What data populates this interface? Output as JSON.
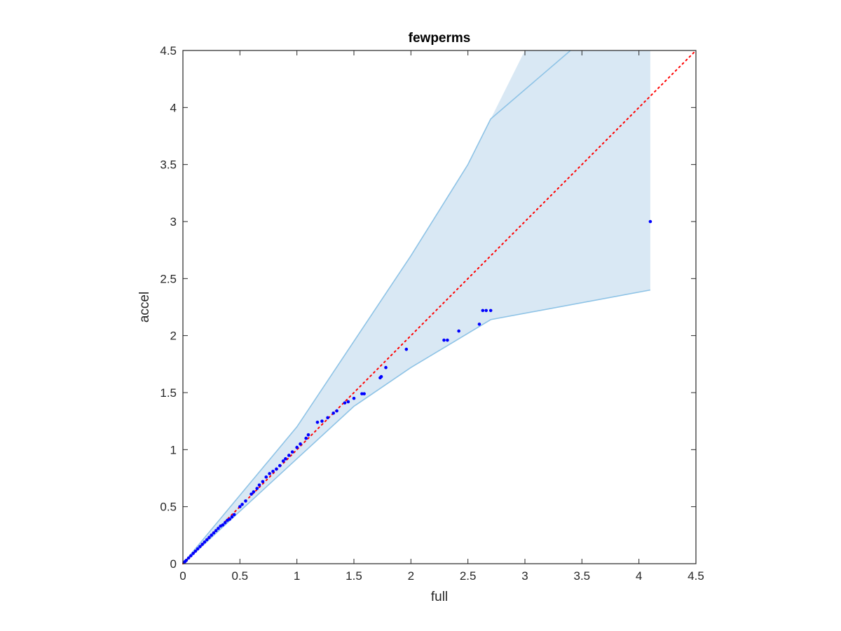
{
  "chart_data": {
    "type": "scatter",
    "title": "fewperms",
    "xlabel": "full",
    "ylabel": "accel",
    "xlim": [
      0,
      4.5
    ],
    "ylim": [
      0,
      4.5
    ],
    "xticks": [
      "0",
      "0.5",
      "1",
      "1.5",
      "2",
      "2.5",
      "3",
      "3.5",
      "4",
      "4.5"
    ],
    "yticks": [
      "0",
      "0.5",
      "1",
      "1.5",
      "2",
      "2.5",
      "3",
      "3.5",
      "4",
      "4.5"
    ],
    "grid": false,
    "box": true,
    "reference_line": {
      "style": "dotted",
      "color": "#ff0000",
      "x": [
        0,
        4.5
      ],
      "y": [
        0,
        4.5
      ]
    },
    "confidence_band": {
      "fill": "#d9e8f4",
      "edge": "#8ec3e6",
      "upper": {
        "x": [
          0,
          0.5,
          1.0,
          1.5,
          2.0,
          2.5,
          2.7,
          3.0,
          3.4
        ],
        "y": [
          0,
          0.6,
          1.2,
          1.95,
          2.7,
          3.5,
          3.9,
          4.5,
          4.5
        ]
      },
      "lower": {
        "x": [
          0,
          0.5,
          1.0,
          1.5,
          2.0,
          2.5,
          2.7,
          4.1
        ],
        "y": [
          0,
          0.46,
          0.92,
          1.38,
          1.72,
          2.02,
          2.14,
          2.4
        ]
      },
      "x_end": 4.1,
      "upper_x_at_top": 3.4
    },
    "series": [
      {
        "color": "#0000ff",
        "x": [
          0.01,
          0.02,
          0.03,
          0.05,
          0.07,
          0.09,
          0.11,
          0.13,
          0.15,
          0.17,
          0.19,
          0.21,
          0.23,
          0.25,
          0.27,
          0.29,
          0.31,
          0.33,
          0.35,
          0.37,
          0.39,
          0.41,
          0.43,
          0.45,
          0.5,
          0.52,
          0.55,
          0.6,
          0.62,
          0.65,
          0.67,
          0.7,
          0.73,
          0.76,
          0.79,
          0.82,
          0.85,
          0.88,
          0.9,
          0.93,
          0.96,
          1.0,
          1.03,
          1.08,
          1.1,
          1.18,
          1.22,
          1.27,
          1.32,
          1.35,
          1.42,
          1.45,
          1.5,
          1.57,
          1.59,
          1.73,
          1.74,
          1.78,
          1.96,
          2.29,
          2.32,
          2.42,
          2.6,
          2.63,
          2.66,
          2.7,
          4.1
        ],
        "y": [
          0.01,
          0.02,
          0.03,
          0.05,
          0.07,
          0.09,
          0.11,
          0.13,
          0.15,
          0.17,
          0.19,
          0.21,
          0.23,
          0.25,
          0.27,
          0.29,
          0.31,
          0.33,
          0.34,
          0.36,
          0.38,
          0.39,
          0.41,
          0.43,
          0.5,
          0.52,
          0.55,
          0.61,
          0.63,
          0.66,
          0.69,
          0.72,
          0.76,
          0.79,
          0.81,
          0.83,
          0.86,
          0.9,
          0.92,
          0.95,
          0.98,
          1.02,
          1.05,
          1.1,
          1.13,
          1.24,
          1.25,
          1.28,
          1.32,
          1.34,
          1.41,
          1.42,
          1.45,
          1.49,
          1.49,
          1.63,
          1.64,
          1.72,
          1.88,
          1.96,
          1.96,
          2.04,
          2.1,
          2.22,
          2.22,
          2.22,
          3.0
        ]
      }
    ]
  }
}
